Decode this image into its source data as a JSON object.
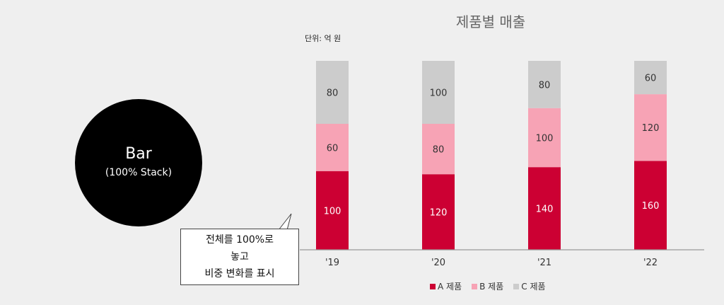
{
  "badge": {
    "title": "Bar",
    "subtitle": "(100% Stack)"
  },
  "callout": {
    "lines": [
      "전체를 100%로",
      "놓고",
      "비중 변화를 표시"
    ]
  },
  "colors": {
    "a": "#cc0033",
    "b": "#f7a3b5",
    "c": "#cccccc",
    "background": "#efefef"
  },
  "chart_data": {
    "type": "bar",
    "stacked": true,
    "normalized": "100%",
    "title": "제품별 매출",
    "unit_label": "단위: 억 원",
    "categories": [
      "'19",
      "'20",
      "'21",
      "'22"
    ],
    "series": [
      {
        "name": "A 제품",
        "values": [
          100,
          120,
          140,
          160
        ],
        "color": "#cc0033"
      },
      {
        "name": "B 제품",
        "values": [
          60,
          80,
          100,
          120
        ],
        "color": "#f7a3b5"
      },
      {
        "name": "C 제품",
        "values": [
          80,
          100,
          80,
          60
        ],
        "color": "#cccccc"
      }
    ],
    "legend_position": "bottom",
    "grid": false
  }
}
